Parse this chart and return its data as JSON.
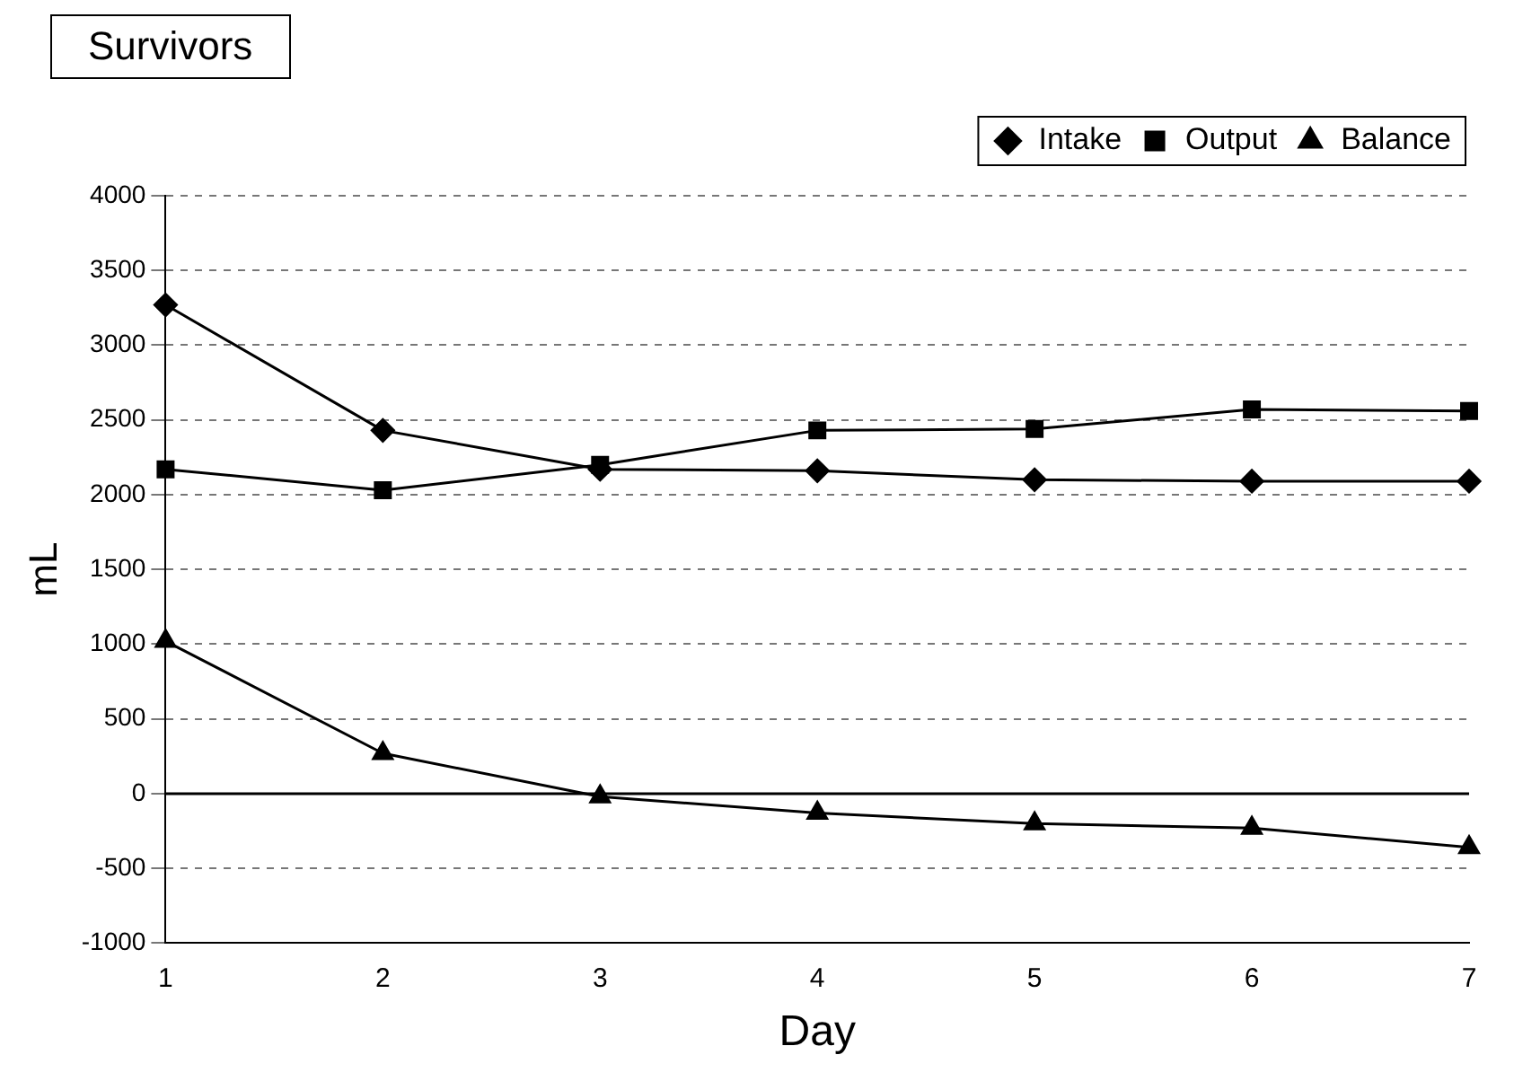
{
  "chart_data": {
    "type": "line",
    "title": "Survivors",
    "xlabel": "Day",
    "ylabel": "mL",
    "categories": [
      "1",
      "2",
      "3",
      "4",
      "5",
      "6",
      "7"
    ],
    "series": [
      {
        "name": "Intake",
        "color": "#000000",
        "marker": "diamond",
        "values": [
          3270,
          2430,
          2170,
          2160,
          2100,
          2090,
          2090
        ]
      },
      {
        "name": "Output",
        "color": "#000000",
        "marker": "square",
        "values": [
          2170,
          2030,
          2200,
          2430,
          2440,
          2570,
          2560
        ]
      },
      {
        "name": "Balance",
        "color": "#000000",
        "marker": "triangle",
        "values": [
          1020,
          270,
          -20,
          -130,
          -200,
          -230,
          -360
        ]
      }
    ],
    "ylim": [
      -1000,
      4000
    ],
    "yticks": [
      -1000,
      -500,
      0,
      500,
      1000,
      1500,
      2000,
      2500,
      3000,
      3500,
      4000
    ],
    "ref_lines": [
      {
        "axis": "y",
        "value": 0,
        "color": "#000000",
        "line_style": "solid"
      }
    ],
    "grid": "y",
    "legend": "top right",
    "line_style": "solid"
  }
}
